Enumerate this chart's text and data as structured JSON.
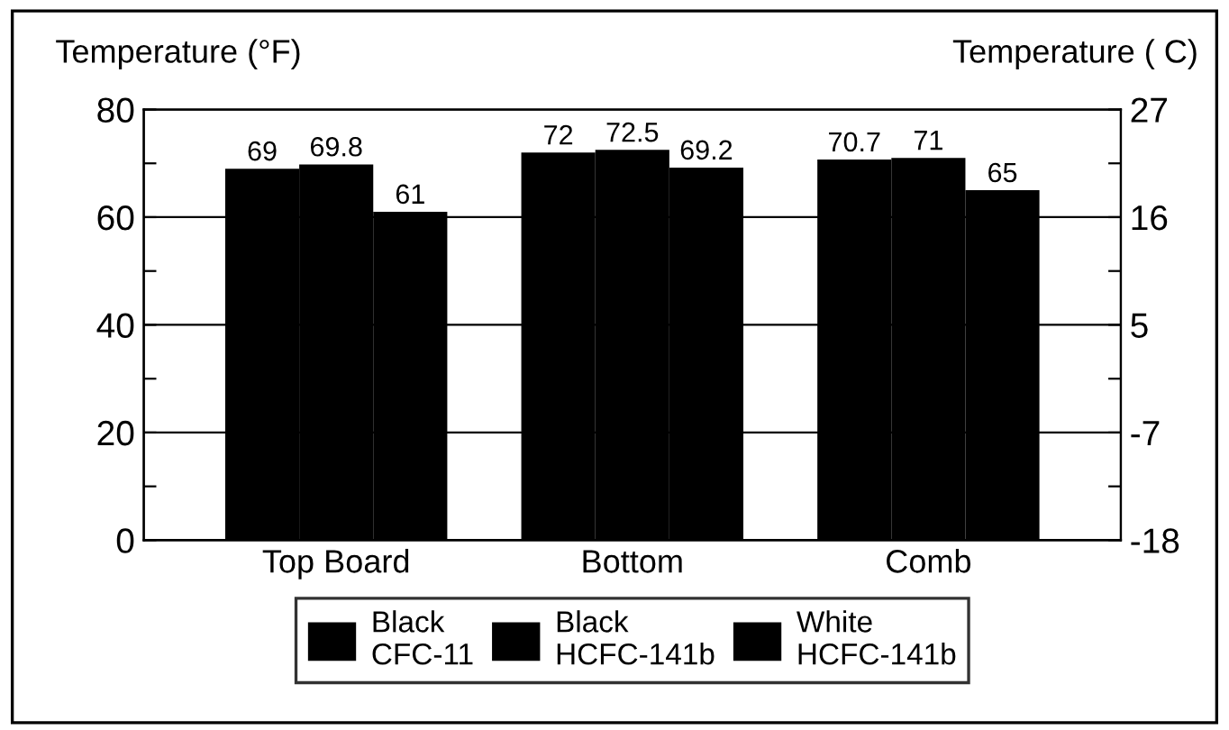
{
  "chart_data": {
    "type": "bar",
    "ylabel": "Temperature (°F)",
    "y2label": "Temperature ( C)",
    "categories": [
      "Top Board",
      "Bottom",
      "Comb"
    ],
    "series": [
      {
        "name": "Black\nCFC-11",
        "color": "#000000",
        "values": [
          69,
          72,
          70.7
        ]
      },
      {
        "name": "Black\nHCFC-141b",
        "color": "#000000",
        "values": [
          69.8,
          72.5,
          71
        ]
      },
      {
        "name": "White\nHCFC-141b",
        "color": "#000000",
        "values": [
          61,
          69.2,
          65
        ]
      }
    ],
    "ylim": [
      0,
      80
    ],
    "yticks": [
      0,
      {
        "value": 10,
        "label": null
      },
      20,
      {
        "value": 30,
        "label": null
      },
      40,
      {
        "value": 50,
        "label": null
      },
      60,
      {
        "value": 70,
        "label": null
      },
      80
    ],
    "y2lim": [
      -18,
      27
    ],
    "y2ticks": [
      {
        "value": -18,
        "label": "-18"
      },
      {
        "value": -12.375,
        "label": null
      },
      {
        "value": -6.75,
        "label": "-7"
      },
      {
        "value": -1.125,
        "label": null
      },
      {
        "value": 4.5,
        "label": "5"
      },
      {
        "value": 10.125,
        "label": null
      },
      {
        "value": 15.75,
        "label": "16"
      },
      {
        "value": 21.375,
        "label": null
      },
      {
        "value": 27,
        "label": "27"
      }
    ],
    "grid": "y",
    "legend": "bottom",
    "data_labels": true
  }
}
